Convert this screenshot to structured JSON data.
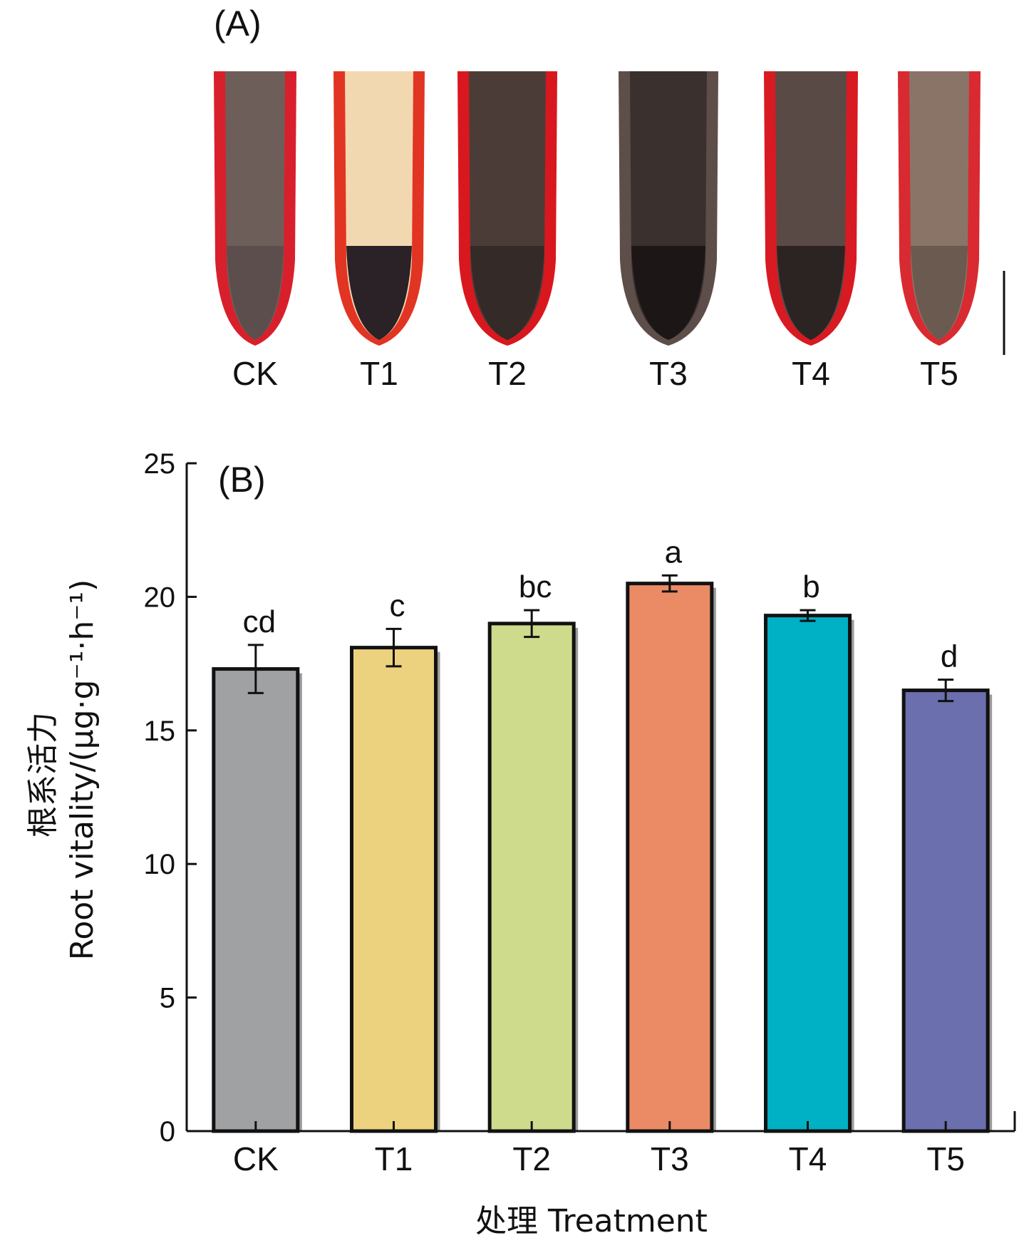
{
  "panel_a": {
    "label": "(A)",
    "roots": [
      {
        "label": "CK",
        "tip": "#5a4a48",
        "body": "#6e5e5a",
        "stain": "#d8202c",
        "dark": "#5c4e4c"
      },
      {
        "label": "T1",
        "tip": "#2c2428",
        "body": "#f2d8b0",
        "stain": "#e23422",
        "dark": "#2a2226"
      },
      {
        "label": "T2",
        "tip": "#3a302e",
        "body": "#4c3c38",
        "stain": "#d8181e",
        "dark": "#342a28"
      },
      {
        "label": "T3",
        "tip": "#1e1818",
        "body": "#3a302e",
        "stain": "#5e4e4a",
        "dark": "#1c1616"
      },
      {
        "label": "T4",
        "tip": "#2e2624",
        "body": "#5a4a46",
        "stain": "#d81a22",
        "dark": "#2c2422"
      },
      {
        "label": "T5",
        "tip": "#6a584e",
        "body": "#8a7468",
        "stain": "#d82a30",
        "dark": "#6a5a50"
      }
    ]
  },
  "chart_data": {
    "type": "bar",
    "panel_label": "(B)",
    "categories": [
      "CK",
      "T1",
      "T2",
      "T3",
      "T4",
      "T5"
    ],
    "values": [
      17.3,
      18.1,
      19.0,
      20.5,
      19.3,
      16.5
    ],
    "errors": [
      0.9,
      0.7,
      0.5,
      0.3,
      0.2,
      0.4
    ],
    "significance": [
      "cd",
      "c",
      "bc",
      "a",
      "b",
      "d"
    ],
    "colors": [
      "#a0a1a3",
      "#ecd27e",
      "#cfdb8c",
      "#eb8b66",
      "#00b0c4",
      "#6b6fae"
    ],
    "ylim": [
      0,
      25
    ],
    "yticks": [
      0,
      5,
      10,
      15,
      20,
      25
    ],
    "ylabel_cn": "根系活力",
    "ylabel_en": "Root vitality/(μg·g⁻¹·h⁻¹)",
    "xlabel": "处理 Treatment"
  }
}
